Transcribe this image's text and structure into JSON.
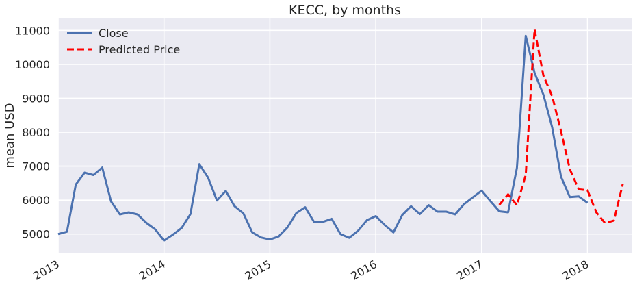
{
  "chart_data": {
    "type": "line",
    "title": "KECC, by months",
    "xlabel": "",
    "ylabel": "mean USD",
    "x_tick_labels": [
      "2013",
      "2014",
      "2015",
      "2016",
      "2017",
      "2018"
    ],
    "y_tick_labels": [
      "5000",
      "6000",
      "7000",
      "8000",
      "9000",
      "10000",
      "11000"
    ],
    "xlim": [
      "2013-01",
      "2018-06"
    ],
    "ylim": [
      4450,
      11350
    ],
    "grid": true,
    "legend_position": "top-left",
    "series": [
      {
        "name": "Close",
        "color": "#4c72b0",
        "style": "solid",
        "points": [
          [
            "2013-01",
            5000
          ],
          [
            "2013-02",
            5070
          ],
          [
            "2013-03",
            6460
          ],
          [
            "2013-04",
            6810
          ],
          [
            "2013-05",
            6740
          ],
          [
            "2013-06",
            6960
          ],
          [
            "2013-07",
            5960
          ],
          [
            "2013-08",
            5580
          ],
          [
            "2013-09",
            5640
          ],
          [
            "2013-10",
            5580
          ],
          [
            "2013-11",
            5330
          ],
          [
            "2013-12",
            5140
          ],
          [
            "2014-01",
            4810
          ],
          [
            "2014-02",
            4980
          ],
          [
            "2014-03",
            5180
          ],
          [
            "2014-04",
            5590
          ],
          [
            "2014-05",
            7060
          ],
          [
            "2014-06",
            6660
          ],
          [
            "2014-07",
            5990
          ],
          [
            "2014-08",
            6270
          ],
          [
            "2014-09",
            5820
          ],
          [
            "2014-10",
            5610
          ],
          [
            "2014-11",
            5050
          ],
          [
            "2014-12",
            4900
          ],
          [
            "2015-01",
            4840
          ],
          [
            "2015-02",
            4930
          ],
          [
            "2015-03",
            5200
          ],
          [
            "2015-04",
            5620
          ],
          [
            "2015-05",
            5790
          ],
          [
            "2015-06",
            5360
          ],
          [
            "2015-07",
            5360
          ],
          [
            "2015-08",
            5450
          ],
          [
            "2015-09",
            5000
          ],
          [
            "2015-10",
            4890
          ],
          [
            "2015-11",
            5100
          ],
          [
            "2015-12",
            5410
          ],
          [
            "2016-01",
            5530
          ],
          [
            "2016-02",
            5270
          ],
          [
            "2016-03",
            5050
          ],
          [
            "2016-04",
            5560
          ],
          [
            "2016-05",
            5820
          ],
          [
            "2016-06",
            5590
          ],
          [
            "2016-07",
            5850
          ],
          [
            "2016-08",
            5660
          ],
          [
            "2016-09",
            5660
          ],
          [
            "2016-10",
            5580
          ],
          [
            "2016-11",
            5880
          ],
          [
            "2016-12",
            6080
          ],
          [
            "2017-01",
            6280
          ],
          [
            "2017-02",
            5970
          ],
          [
            "2017-03",
            5670
          ],
          [
            "2017-04",
            5640
          ],
          [
            "2017-05",
            6950
          ],
          [
            "2017-06",
            10840
          ],
          [
            "2017-07",
            9750
          ],
          [
            "2017-08",
            9110
          ],
          [
            "2017-09",
            8140
          ],
          [
            "2017-10",
            6690
          ],
          [
            "2017-11",
            6090
          ],
          [
            "2017-12",
            6110
          ],
          [
            "2018-01",
            5920
          ]
        ]
      },
      {
        "name": "Predicted Price",
        "color": "#ff0000",
        "style": "dashed",
        "points": [
          [
            "2017-03",
            5860
          ],
          [
            "2017-04",
            6170
          ],
          [
            "2017-05",
            5850
          ],
          [
            "2017-06",
            6740
          ],
          [
            "2017-07",
            11030
          ],
          [
            "2017-08",
            9670
          ],
          [
            "2017-09",
            9060
          ],
          [
            "2017-10",
            8030
          ],
          [
            "2017-11",
            6910
          ],
          [
            "2017-12",
            6320
          ],
          [
            "2018-01",
            6290
          ],
          [
            "2018-02",
            5640
          ],
          [
            "2018-03",
            5320
          ],
          [
            "2018-04",
            5400
          ],
          [
            "2018-05",
            6480
          ]
        ]
      }
    ]
  }
}
